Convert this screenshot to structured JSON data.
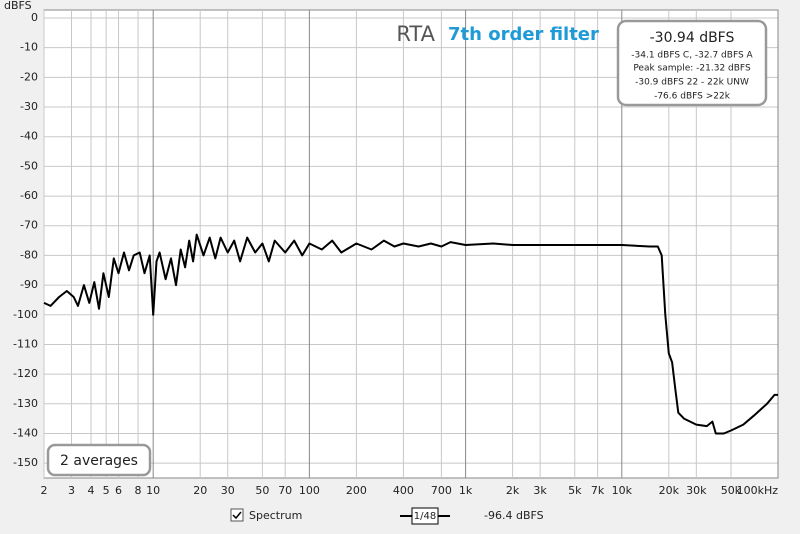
{
  "chart_data": {
    "type": "line",
    "title": "RTA",
    "subtitle": "7th order filter",
    "y_label": "dBFS",
    "info_box": {
      "title": "-30.94 dBFS",
      "lines": [
        "-34.1 dBFS C, -32.7 dBFS A",
        "Peak sample: -21.32 dBFS",
        "-30.9 dBFS 22 - 22k UNW",
        "-76.6 dBFS >22k"
      ]
    },
    "averages": "2 averages",
    "smoothing": "1/48",
    "cursor_value": "-96.4 dBFS",
    "log_x": true,
    "grid": true,
    "xlim": [
      2,
      100000
    ],
    "ylim": [
      -155,
      0
    ],
    "xticks": [
      2,
      3,
      4,
      5,
      6,
      8,
      10,
      20,
      30,
      50,
      70,
      100,
      200,
      400,
      700,
      {
        "value": 1000,
        "label": "1k"
      },
      {
        "value": 2000,
        "label": "2k"
      },
      {
        "value": 3000,
        "label": "3k"
      },
      {
        "value": 5000,
        "label": "5k"
      },
      {
        "value": 7000,
        "label": "7k"
      },
      {
        "value": 10000,
        "label": "10k"
      },
      {
        "value": 20000,
        "label": "20k"
      },
      {
        "value": 30000,
        "label": "30k"
      },
      {
        "value": 50000,
        "label": "50k"
      },
      {
        "value": 100000,
        "label": "100kHz"
      }
    ],
    "yticks": [
      0,
      -10,
      -20,
      -30,
      -40,
      -50,
      -60,
      -70,
      -80,
      -90,
      -100,
      -110,
      -120,
      -130,
      -140,
      -150
    ],
    "series": [
      {
        "name": "Spectrum",
        "color": "#000000",
        "x": [
          2,
          2.2,
          2.5,
          2.8,
          3.1,
          3.3,
          3.6,
          3.9,
          4.2,
          4.5,
          4.8,
          5.2,
          5.6,
          6,
          6.5,
          7,
          7.5,
          8.2,
          8.8,
          9.5,
          10,
          10.5,
          11,
          12,
          13,
          14,
          15,
          16,
          17,
          18,
          19,
          21,
          23,
          25,
          27,
          30,
          33,
          36,
          40,
          45,
          50,
          55,
          60,
          70,
          80,
          90,
          100,
          120,
          140,
          160,
          200,
          250,
          300,
          350,
          400,
          500,
          600,
          700,
          800,
          1000,
          1500,
          2000,
          3000,
          5000,
          10000,
          15000,
          17000,
          18000,
          19000,
          20000,
          21000,
          22000,
          23000,
          25000,
          30000,
          35000,
          38000,
          40000,
          45000,
          50000,
          60000,
          70000,
          85000,
          95000,
          100000
        ],
        "values": [
          -96,
          -97,
          -94,
          -92,
          -94,
          -97,
          -90,
          -96,
          -89,
          -98,
          -86,
          -94,
          -81,
          -86,
          -79,
          -85,
          -80,
          -79,
          -86,
          -80,
          -100,
          -82,
          -79,
          -88,
          -81,
          -90,
          -78,
          -84,
          -75,
          -82,
          -73,
          -80,
          -74,
          -81,
          -74,
          -79,
          -75,
          -82,
          -74,
          -79,
          -76,
          -82,
          -75,
          -79,
          -75,
          -80,
          -76,
          -78,
          -75,
          -79,
          -76,
          -78,
          -75,
          -77,
          -76,
          -77,
          -76,
          -77,
          -75.5,
          -76.5,
          -76,
          -76.5,
          -76.5,
          -76.5,
          -76.5,
          -77,
          -77,
          -80,
          -100,
          -113,
          -116,
          -125,
          -133,
          -135,
          -137,
          -137.5,
          -136,
          -140,
          -140,
          -139,
          -137,
          -134,
          -130,
          -127,
          -127
        ]
      }
    ]
  }
}
